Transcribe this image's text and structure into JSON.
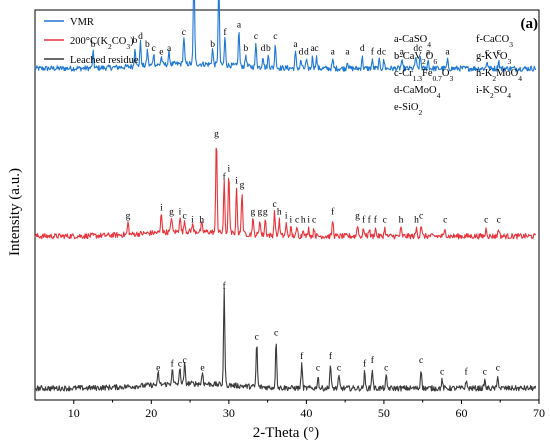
{
  "chart_data": {
    "type": "line",
    "panel_label": "(a)",
    "xlabel": "2-Theta (°)",
    "ylabel": "Intensity (a.u.)",
    "xlim": [
      5,
      70
    ],
    "xticks": [
      10,
      20,
      30,
      40,
      50,
      60,
      70
    ],
    "yticks": [],
    "legend_position": "top-left",
    "phase_key": [
      [
        "a-CaSO",
        "4",
        ""
      ],
      [
        "b-CaV",
        "2",
        "O",
        "6",
        ""
      ],
      [
        "c-Cr",
        "1.3",
        "Fe",
        "0.7",
        "O",
        "3",
        ""
      ],
      [
        "d-CaMoO",
        "4",
        ""
      ],
      [
        "e-SiO",
        "2",
        ""
      ],
      [
        "f-CaCO",
        "3",
        ""
      ],
      [
        "g-KVO",
        "3",
        ""
      ],
      [
        "h-K",
        "2",
        "MoO",
        "4",
        ""
      ],
      [
        "i-K",
        "2",
        "SO",
        "4",
        ""
      ]
    ],
    "series": [
      {
        "name": "VMR",
        "color": "#1f77d4",
        "baseline": 0.85,
        "peaks": [
          {
            "x": 12.5,
            "h": 0.04,
            "label": "b"
          },
          {
            "x": 17.9,
            "h": 0.05,
            "label": "b"
          },
          {
            "x": 18.6,
            "h": 0.06,
            "label": "d"
          },
          {
            "x": 19.5,
            "h": 0.04,
            "label": "b"
          },
          {
            "x": 20.3,
            "h": 0.03,
            "label": "c"
          },
          {
            "x": 21.3,
            "h": 0.02,
            "label": "e"
          },
          {
            "x": 22.3,
            "h": 0.03,
            "label": "a"
          },
          {
            "x": 24.2,
            "h": 0.07,
            "label": "c"
          },
          {
            "x": 25.5,
            "h": 0.26,
            "label": "a"
          },
          {
            "x": 27.9,
            "h": 0.04,
            "label": "b"
          },
          {
            "x": 28.7,
            "h": 0.21,
            "label": "d"
          },
          {
            "x": 29.5,
            "h": 0.07,
            "label": "f"
          },
          {
            "x": 31.3,
            "h": 0.09,
            "label": "a"
          },
          {
            "x": 32.2,
            "h": 0.03,
            "label": "b"
          },
          {
            "x": 33.5,
            "h": 0.06,
            "label": "c"
          },
          {
            "x": 34.4,
            "h": 0.03,
            "label": "d"
          },
          {
            "x": 35.1,
            "h": 0.03,
            "label": "b"
          },
          {
            "x": 36.0,
            "h": 0.06,
            "label": "c"
          },
          {
            "x": 38.6,
            "h": 0.04,
            "label": "a"
          },
          {
            "x": 39.3,
            "h": 0.02,
            "label": "d"
          },
          {
            "x": 40.0,
            "h": 0.02,
            "label": "d"
          },
          {
            "x": 40.8,
            "h": 0.03,
            "label": "a"
          },
          {
            "x": 41.3,
            "h": 0.03,
            "label": "c"
          },
          {
            "x": 43.4,
            "h": 0.02,
            "label": "a"
          },
          {
            "x": 45.3,
            "h": 0.02,
            "label": "a"
          },
          {
            "x": 47.2,
            "h": 0.03,
            "label": "d"
          },
          {
            "x": 48.5,
            "h": 0.02,
            "label": "f"
          },
          {
            "x": 49.4,
            "h": 0.02,
            "label": "d"
          },
          {
            "x": 50.0,
            "h": 0.02,
            "label": "c"
          },
          {
            "x": 52.3,
            "h": 0.02,
            "label": "a"
          },
          {
            "x": 54.1,
            "h": 0.03,
            "label": "d"
          },
          {
            "x": 54.7,
            "h": 0.03,
            "label": "c"
          },
          {
            "x": 55.7,
            "h": 0.02,
            "label": "a"
          },
          {
            "x": 58.2,
            "h": 0.02,
            "label": "a"
          },
          {
            "x": 63.3,
            "h": 0.02,
            "label": "c"
          },
          {
            "x": 64.8,
            "h": 0.02,
            "label": "c"
          }
        ]
      },
      {
        "name": "200°C(K2CO3)",
        "name_parts": [
          "200°C(K",
          "2",
          "CO",
          "3",
          ")"
        ],
        "color": "#e8333a",
        "baseline": 0.42,
        "peaks": [
          {
            "x": 17.0,
            "h": 0.03,
            "label": "g"
          },
          {
            "x": 21.3,
            "h": 0.05,
            "label": "i"
          },
          {
            "x": 22.6,
            "h": 0.04,
            "label": "g"
          },
          {
            "x": 23.7,
            "h": 0.04,
            "label": "i"
          },
          {
            "x": 24.3,
            "h": 0.03,
            "label": "c"
          },
          {
            "x": 25.3,
            "h": 0.02,
            "label": "i"
          },
          {
            "x": 26.5,
            "h": 0.02,
            "label": "h"
          },
          {
            "x": 28.4,
            "h": 0.24,
            "label": "g"
          },
          {
            "x": 29.4,
            "h": 0.13,
            "label": "f"
          },
          {
            "x": 30.0,
            "h": 0.15,
            "label": "i"
          },
          {
            "x": 31.0,
            "h": 0.12,
            "label": "i"
          },
          {
            "x": 31.7,
            "h": 0.11,
            "label": "g"
          },
          {
            "x": 33.1,
            "h": 0.04,
            "label": "g"
          },
          {
            "x": 34.0,
            "h": 0.04,
            "label": "g"
          },
          {
            "x": 34.7,
            "h": 0.04,
            "label": "g"
          },
          {
            "x": 35.9,
            "h": 0.06,
            "label": "c"
          },
          {
            "x": 36.5,
            "h": 0.04,
            "label": "h"
          },
          {
            "x": 37.4,
            "h": 0.03,
            "label": "i"
          },
          {
            "x": 38.0,
            "h": 0.02,
            "label": "i"
          },
          {
            "x": 38.8,
            "h": 0.02,
            "label": "c"
          },
          {
            "x": 39.6,
            "h": 0.02,
            "label": "h"
          },
          {
            "x": 40.3,
            "h": 0.02,
            "label": "i"
          },
          {
            "x": 41.0,
            "h": 0.02,
            "label": "c"
          },
          {
            "x": 43.4,
            "h": 0.04,
            "label": "f"
          },
          {
            "x": 46.6,
            "h": 0.03,
            "label": "g"
          },
          {
            "x": 47.4,
            "h": 0.02,
            "label": "f"
          },
          {
            "x": 48.1,
            "h": 0.02,
            "label": "f"
          },
          {
            "x": 48.9,
            "h": 0.02,
            "label": "f"
          },
          {
            "x": 50.1,
            "h": 0.02,
            "label": "c"
          },
          {
            "x": 52.2,
            "h": 0.02,
            "label": "h"
          },
          {
            "x": 54.2,
            "h": 0.02,
            "label": "h"
          },
          {
            "x": 54.8,
            "h": 0.03,
            "label": "c"
          },
          {
            "x": 57.9,
            "h": 0.02,
            "label": "c"
          },
          {
            "x": 63.2,
            "h": 0.02,
            "label": "c"
          },
          {
            "x": 64.8,
            "h": 0.02,
            "label": "c"
          }
        ]
      },
      {
        "name": "Leached residue",
        "color": "#3a3a3a",
        "baseline": 0.03,
        "peaks": [
          {
            "x": 20.9,
            "h": 0.03,
            "label": "e"
          },
          {
            "x": 22.7,
            "h": 0.04,
            "label": "f"
          },
          {
            "x": 23.7,
            "h": 0.04,
            "label": "c"
          },
          {
            "x": 24.3,
            "h": 0.05,
            "label": "c"
          },
          {
            "x": 26.6,
            "h": 0.03,
            "label": "e"
          },
          {
            "x": 29.4,
            "h": 0.24,
            "label": "f"
          },
          {
            "x": 33.6,
            "h": 0.11,
            "label": "c"
          },
          {
            "x": 36.1,
            "h": 0.12,
            "label": "c"
          },
          {
            "x": 39.4,
            "h": 0.06,
            "label": "f"
          },
          {
            "x": 41.5,
            "h": 0.03,
            "label": "c"
          },
          {
            "x": 43.1,
            "h": 0.06,
            "label": "f"
          },
          {
            "x": 44.2,
            "h": 0.03,
            "label": "c"
          },
          {
            "x": 47.5,
            "h": 0.04,
            "label": "f"
          },
          {
            "x": 48.5,
            "h": 0.05,
            "label": "f"
          },
          {
            "x": 50.3,
            "h": 0.03,
            "label": "c"
          },
          {
            "x": 54.8,
            "h": 0.05,
            "label": "c"
          },
          {
            "x": 57.5,
            "h": 0.02,
            "label": "c"
          },
          {
            "x": 60.6,
            "h": 0.02,
            "label": "f"
          },
          {
            "x": 63.0,
            "h": 0.02,
            "label": "c"
          },
          {
            "x": 64.7,
            "h": 0.03,
            "label": "c"
          }
        ]
      }
    ]
  }
}
